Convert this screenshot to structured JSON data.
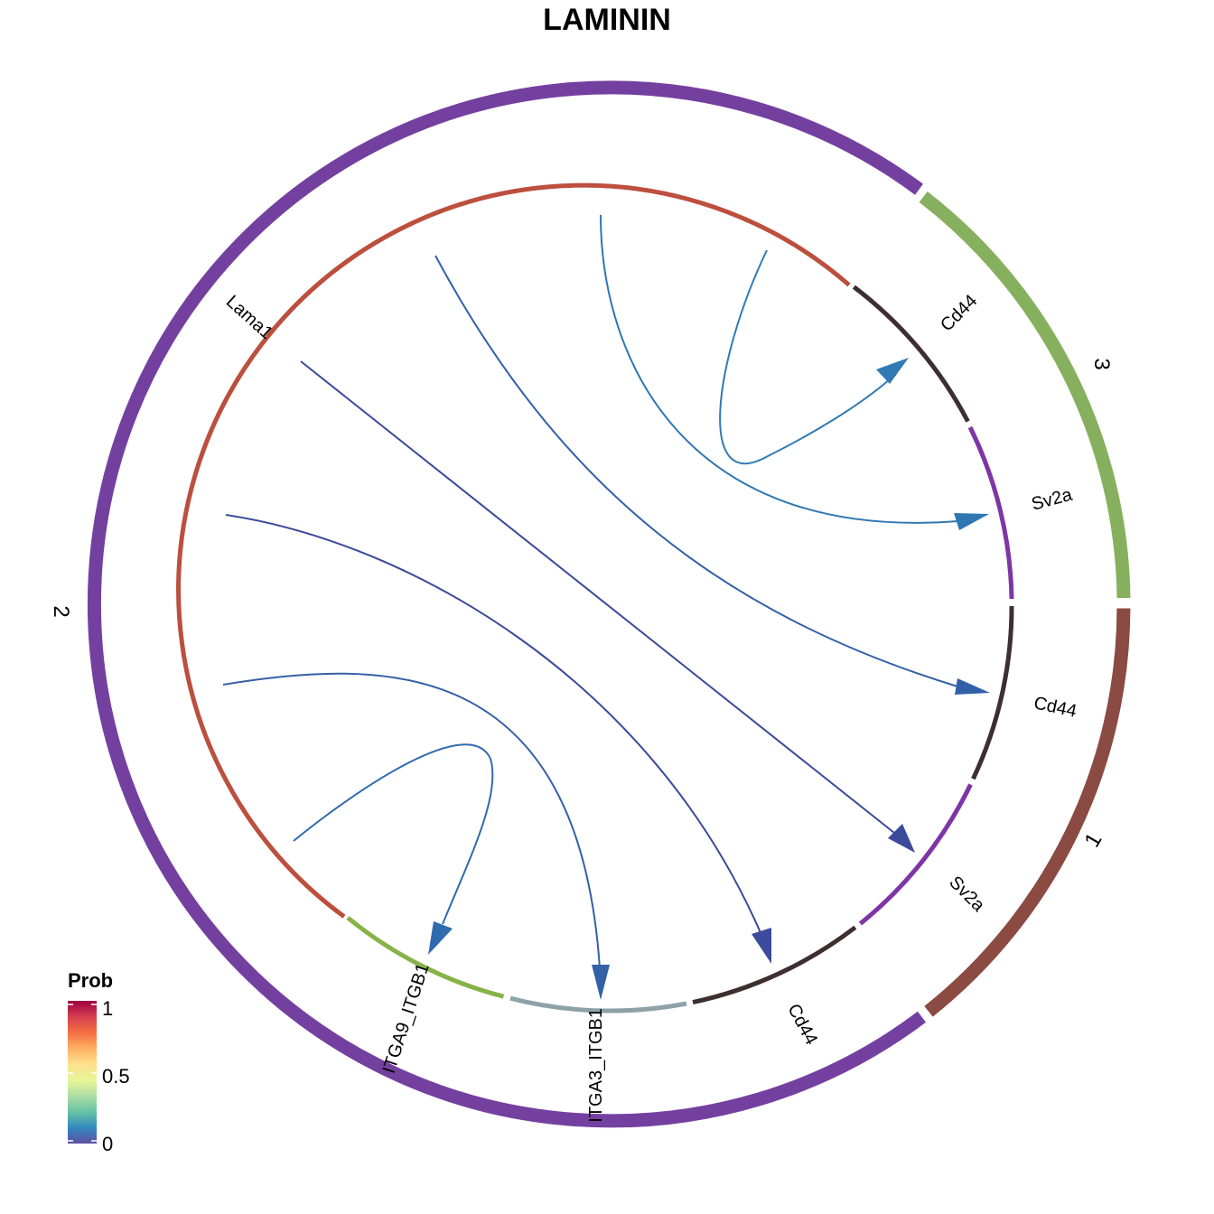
{
  "title": "LAMININ",
  "groups": [
    {
      "label": "1",
      "color": "#8B4A42"
    },
    {
      "label": "2",
      "color": "#7440A0"
    },
    {
      "label": "3",
      "color": "#86B05E"
    }
  ],
  "genes": [
    {
      "label": "Lama1",
      "color": "#BC4F3E"
    },
    {
      "label": "Cd44",
      "color": "#3D2E32"
    },
    {
      "label": "Sv2a",
      "color": "#7E35A5"
    },
    {
      "label": "Cd44",
      "color": "#3D2E32"
    },
    {
      "label": "Sv2a",
      "color": "#7E35A5"
    },
    {
      "label": "Cd44",
      "color": "#3D2E32"
    },
    {
      "label": "ITGA3_ITGB1",
      "color": "#8DA2A8"
    },
    {
      "label": "ITGA9_ITGB1",
      "color": "#86B347"
    }
  ],
  "links": [
    {
      "source": "Lama1",
      "target": "Cd44 (group 3)",
      "color": "#2F7AB4"
    },
    {
      "source": "Lama1",
      "target": "Sv2a (group 3)",
      "color": "#2F76B3"
    },
    {
      "source": "Lama1",
      "target": "Cd44 (group 1)",
      "color": "#3260A8"
    },
    {
      "source": "Lama1",
      "target": "Sv2a (group 1)",
      "color": "#3B4A9A"
    },
    {
      "source": "Lama1",
      "target": "Cd44 (group 2)",
      "color": "#3B4A9A"
    },
    {
      "source": "Lama1",
      "target": "ITGA3_ITGB1",
      "color": "#3560A8"
    },
    {
      "source": "Lama1",
      "target": "ITGA9_ITGB1",
      "color": "#2F6BAE"
    }
  ],
  "legend": {
    "title": "Prob",
    "ticks": [
      "1",
      "0.5",
      "0"
    ],
    "colors": [
      "#9E0142",
      "#D53E4F",
      "#F46D43",
      "#FDAE61",
      "#FEE08B",
      "#E6F598",
      "#ABDDA4",
      "#66C2A5",
      "#3288BD",
      "#5E4FA2"
    ]
  }
}
